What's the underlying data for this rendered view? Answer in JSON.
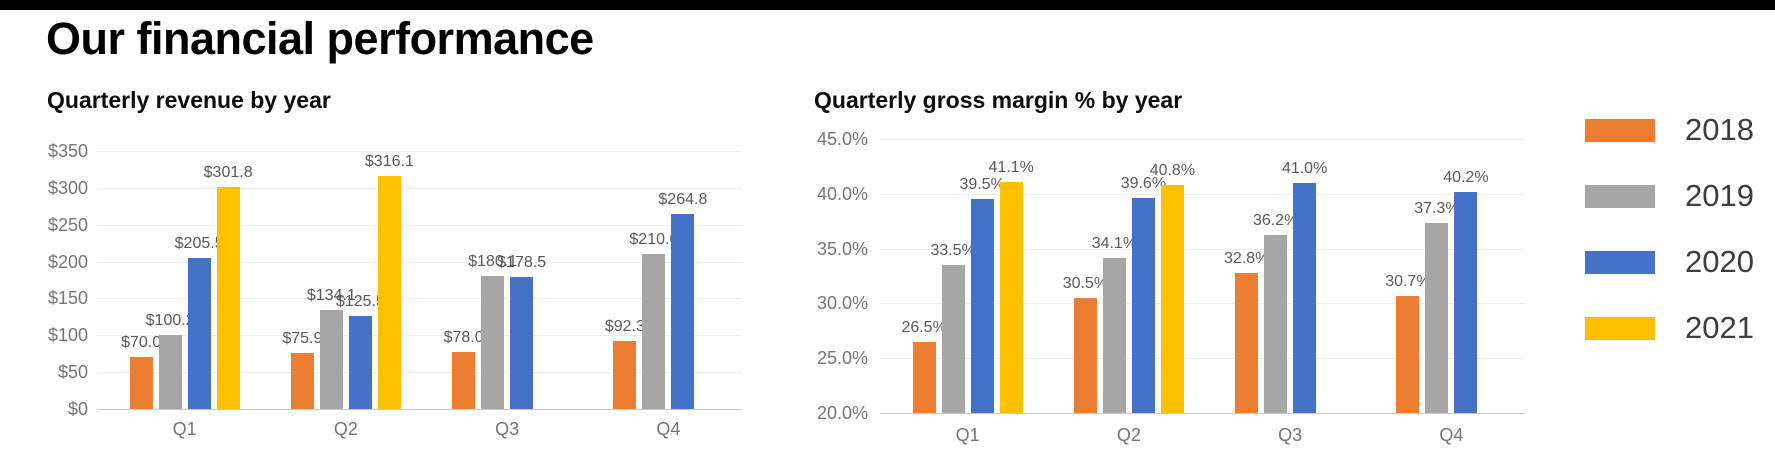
{
  "page_title": "Our financial performance",
  "colors": {
    "top_bar": "#000000",
    "series": {
      "2018": "#ED7D31",
      "2019": "#A6A6A6",
      "2020": "#4472C4",
      "2021": "#FFC000"
    },
    "gridline": "#ececec",
    "axis_line": "#c9c9c9",
    "tick_label": "#757575",
    "data_label": "#595959"
  },
  "legend": {
    "position": "right",
    "items": [
      {
        "label": "2018",
        "color": "#ED7D31"
      },
      {
        "label": "2019",
        "color": "#A6A6A6"
      },
      {
        "label": "2020",
        "color": "#4472C4"
      },
      {
        "label": "2021",
        "color": "#FFC000"
      }
    ]
  },
  "chart_data": [
    {
      "type": "bar",
      "title": "Quarterly revenue by year",
      "categories": [
        "Q1",
        "Q2",
        "Q3",
        "Q4"
      ],
      "series": [
        {
          "name": "2018",
          "values": [
            70.0,
            75.9,
            78.0,
            92.3
          ]
        },
        {
          "name": "2019",
          "values": [
            100.2,
            134.1,
            180.1,
            210.0
          ]
        },
        {
          "name": "2020",
          "values": [
            205.5,
            125.5,
            178.5,
            264.8
          ]
        },
        {
          "name": "2021",
          "values": [
            301.8,
            316.1,
            null,
            null
          ]
        }
      ],
      "data_labels": [
        {
          "name": "2018",
          "labels": [
            "$70.0",
            "$75.9",
            "$78.0",
            "$92.3"
          ]
        },
        {
          "name": "2019",
          "labels": [
            "$100.2",
            "$134.1",
            "$180.1",
            "$210.0"
          ]
        },
        {
          "name": "2020",
          "labels": [
            "$205.5",
            "$125.5",
            "$178.5",
            "$264.8"
          ]
        },
        {
          "name": "2021",
          "labels": [
            "$301.8",
            "$316.1",
            null,
            null
          ]
        }
      ],
      "ylim": [
        0,
        350
      ],
      "yticks": [
        350,
        300,
        250,
        200,
        150,
        100,
        50,
        0
      ],
      "ytick_labels": [
        "$350",
        "$300",
        "$250",
        "$200",
        "$150",
        "$100",
        "$50",
        "$0"
      ],
      "value_prefix": "$",
      "value_suffix": "",
      "grid": true,
      "legend_position": "shared-right"
    },
    {
      "type": "bar",
      "title": "Quarterly gross margin % by year",
      "categories": [
        "Q1",
        "Q2",
        "Q3",
        "Q4"
      ],
      "series": [
        {
          "name": "2018",
          "values": [
            26.5,
            30.5,
            32.8,
            30.7
          ]
        },
        {
          "name": "2019",
          "values": [
            33.5,
            34.1,
            36.2,
            37.3
          ]
        },
        {
          "name": "2020",
          "values": [
            39.5,
            39.6,
            41.0,
            40.2
          ]
        },
        {
          "name": "2021",
          "values": [
            41.1,
            40.8,
            null,
            null
          ]
        }
      ],
      "data_labels": [
        {
          "name": "2018",
          "labels": [
            "26.5%",
            "30.5%",
            "32.8%",
            "30.7%"
          ]
        },
        {
          "name": "2019",
          "labels": [
            "33.5%",
            "34.1%",
            "36.2%",
            "37.3%"
          ]
        },
        {
          "name": "2020",
          "labels": [
            "39.5%",
            "39.6%",
            "41.0%",
            "40.2%"
          ]
        },
        {
          "name": "2021",
          "labels": [
            "41.1%",
            "40.8%",
            null,
            null
          ]
        }
      ],
      "ylim": [
        20,
        45
      ],
      "yticks": [
        45,
        40,
        35,
        30,
        25,
        20
      ],
      "ytick_labels": [
        "45.0%",
        "40.0%",
        "35.0%",
        "30.0%",
        "25.0%",
        "20.0%"
      ],
      "value_prefix": "",
      "value_suffix": "%",
      "grid": true,
      "legend_position": "shared-right"
    }
  ]
}
